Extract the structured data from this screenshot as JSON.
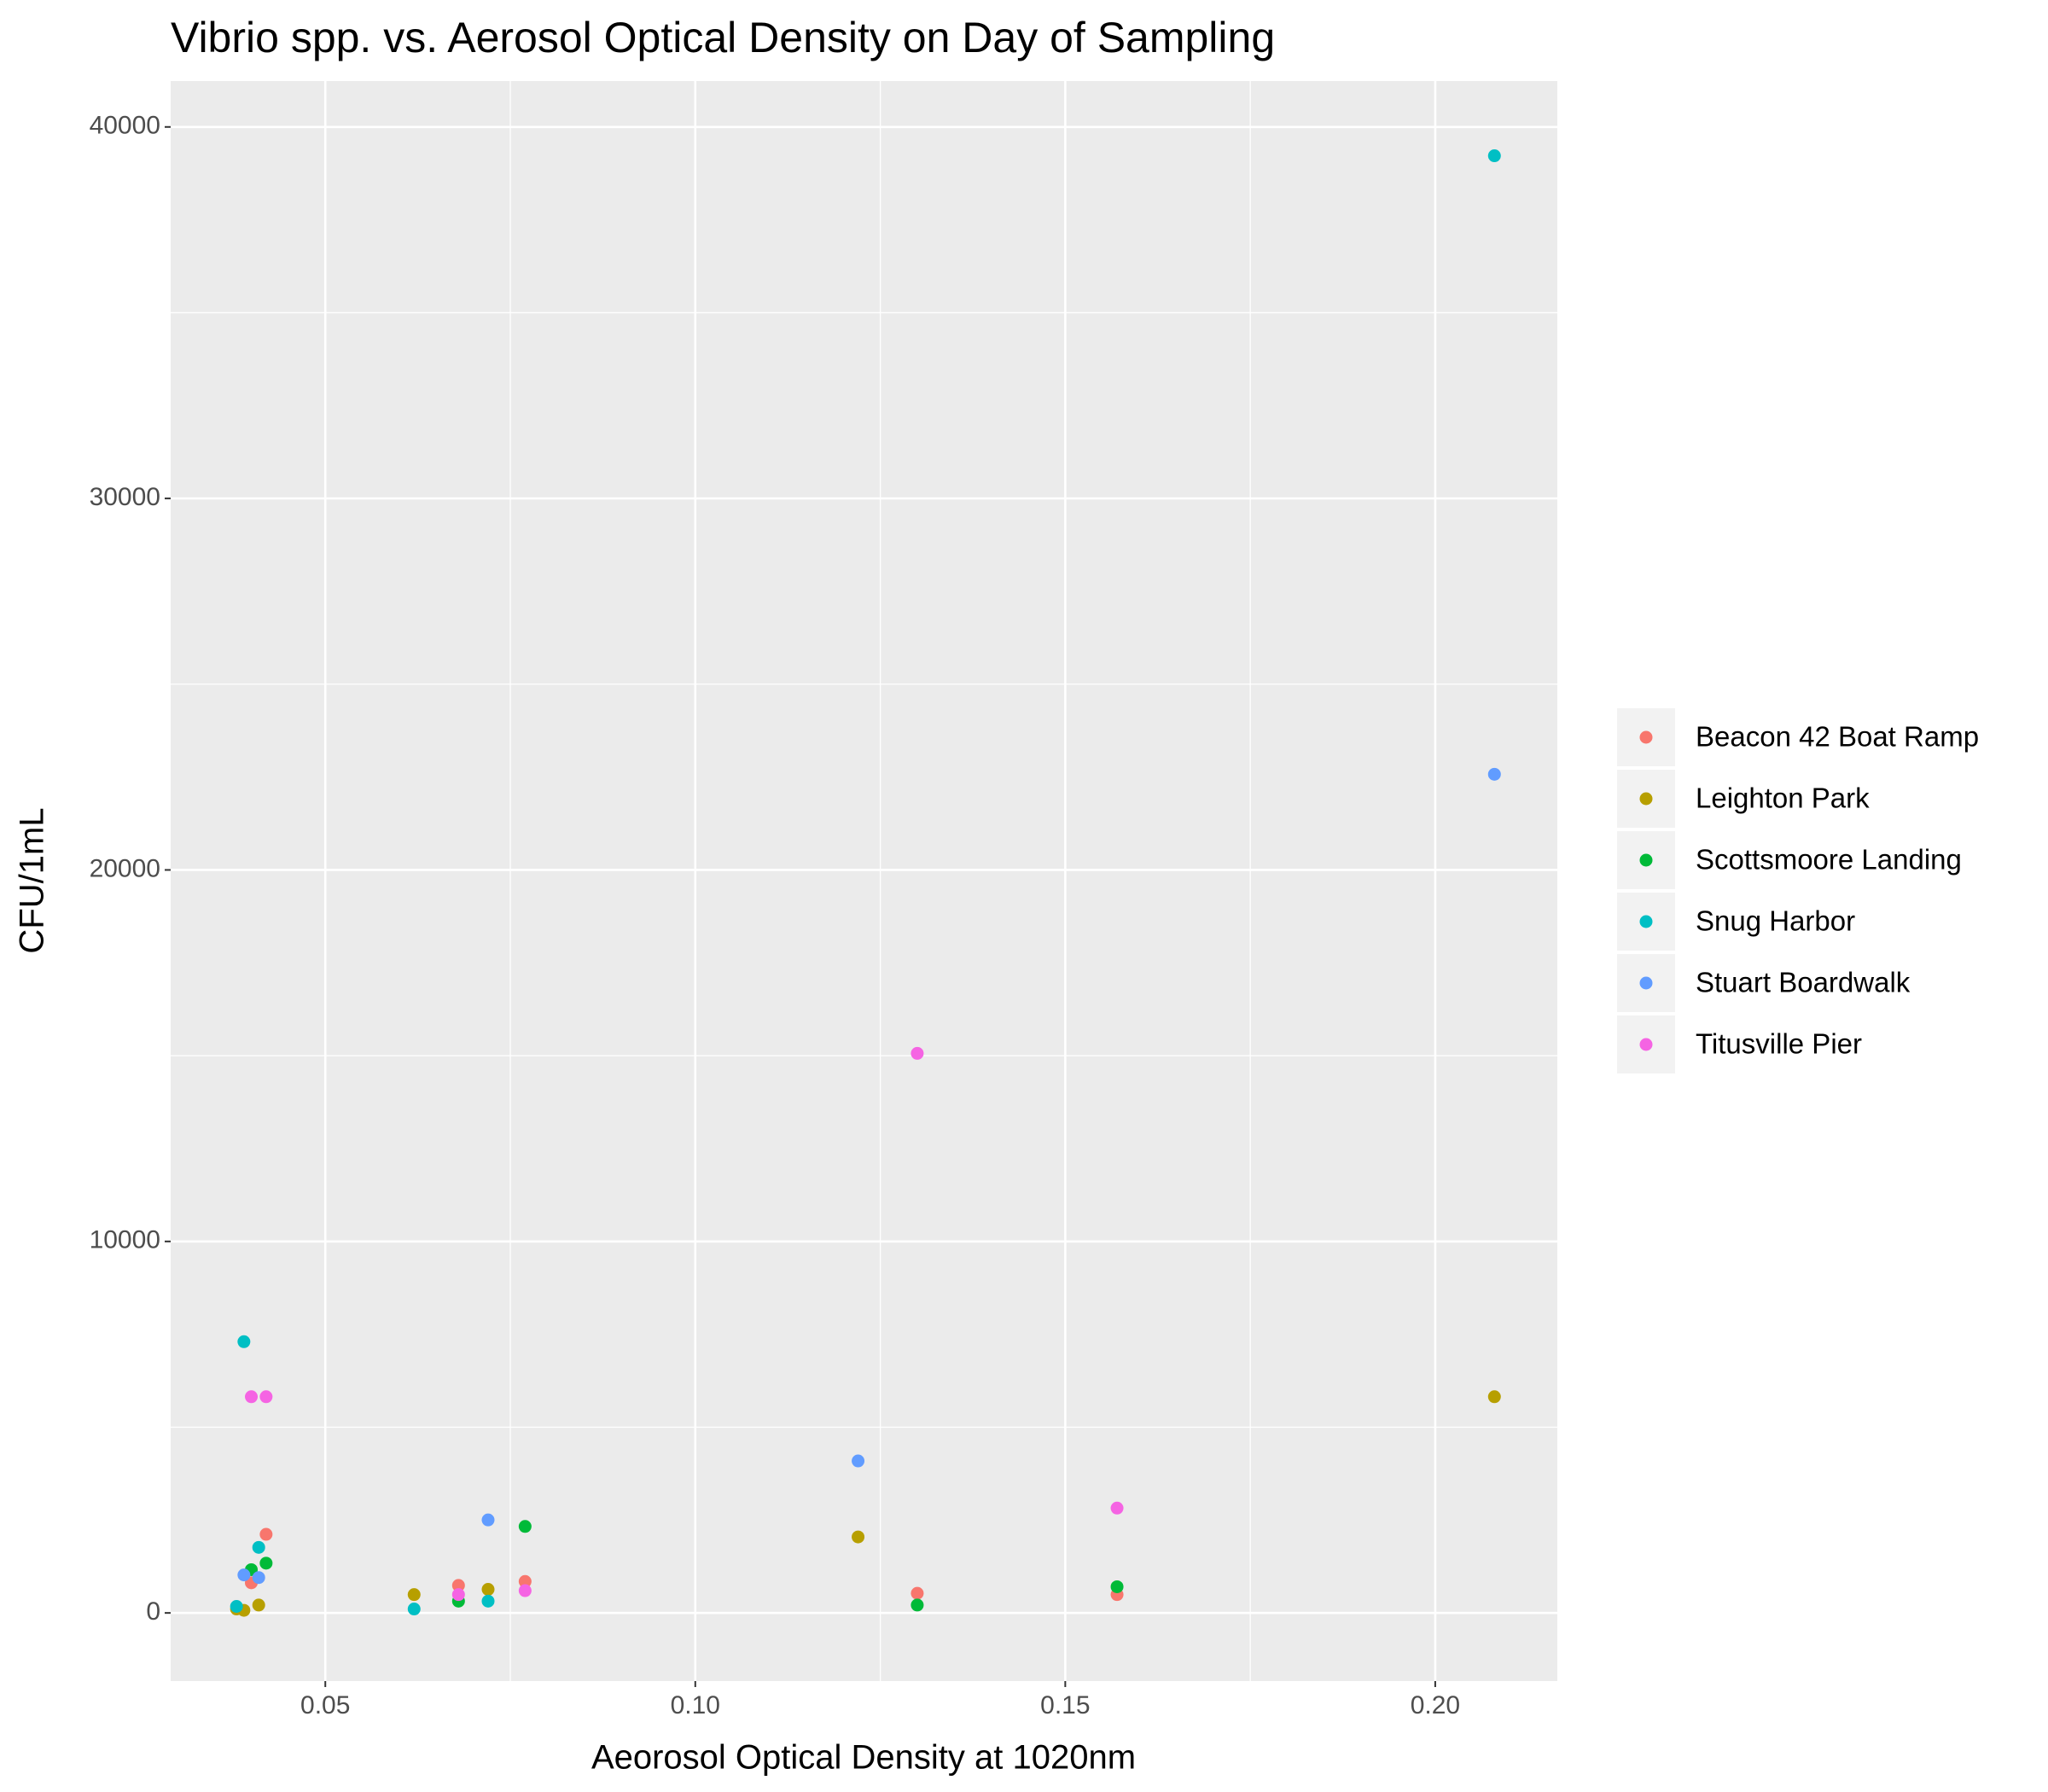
{
  "chart_data": {
    "type": "scatter",
    "title": "Vibrio spp. vs. Aerosol Optical Density on Day of Sampling",
    "x_label": "Aeorosol Optical Density at 1020nm",
    "y_label": "CFU/1mL",
    "xlim": [
      0.0291,
      0.2165
    ],
    "ylim": [
      -1834,
      41235
    ],
    "xticks": [
      0.05,
      {
        "value": 0.1,
        "label": "0.10"
      },
      0.15,
      {
        "value": 0.2,
        "label": "0.20"
      }
    ],
    "yticks": [
      0,
      10000,
      20000,
      30000,
      40000
    ],
    "grid": true,
    "legend_position": "right",
    "series": [
      {
        "name": "Beacon 42 Boat Ramp",
        "color": "#F8766D",
        "x": [
          0.042,
          0.04,
          0.068,
          0.077,
          0.13,
          0.157
        ],
        "values": [
          2116,
          811,
          741,
          847,
          529,
          494
        ]
      },
      {
        "name": "Leighton Park",
        "color": "#B79F00",
        "x": [
          0.038,
          0.039,
          0.041,
          0.062,
          0.072,
          0.122,
          0.208
        ],
        "values": [
          106,
          71,
          212,
          494,
          635,
          2046,
          5820
        ]
      },
      {
        "name": "Scottsmoore Landing",
        "color": "#00BA38",
        "x": [
          0.04,
          0.042,
          0.068,
          0.077,
          0.13,
          0.157
        ],
        "values": [
          1164,
          1340,
          317,
          2328,
          212,
          705
        ]
      },
      {
        "name": "Snug Harbor",
        "color": "#00BFC4",
        "x": [
          0.039,
          0.041,
          0.038,
          0.062,
          0.072,
          0.208
        ],
        "values": [
          7302,
          1764,
          176,
          106,
          317,
          39224
        ]
      },
      {
        "name": "Stuart Boardwalk",
        "color": "#619CFF",
        "x": [
          0.039,
          0.041,
          0.072,
          0.122,
          0.208
        ],
        "values": [
          1023,
          952,
          2504,
          4092,
          22575
        ]
      },
      {
        "name": "Titusville Pier",
        "color": "#F564E3",
        "x": [
          0.04,
          0.042,
          0.068,
          0.077,
          0.13,
          0.157
        ],
        "values": [
          5820,
          5820,
          494,
          600,
          15062,
          2822
        ]
      }
    ]
  }
}
